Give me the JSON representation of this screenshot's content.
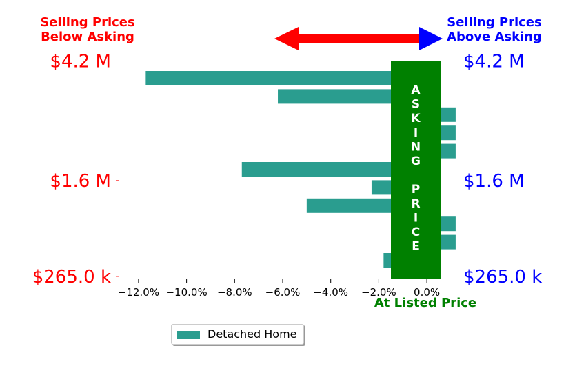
{
  "chart_data": {
    "type": "bar",
    "orientation": "horizontal",
    "header_left": [
      "Selling Prices",
      "Below Asking"
    ],
    "header_right": [
      "Selling Prices",
      "Above Asking"
    ],
    "xlabel": "At Listed Price",
    "center_band_text": "ASKING PRICE",
    "xlim": [
      -12.6,
      0.6
    ],
    "xticks": [
      -12,
      -10,
      -8,
      -6,
      -4,
      -2,
      0
    ],
    "xtick_labels": [
      "−12.0%",
      "−10.0%",
      "−8.0%",
      "−6.0%",
      "−4.0%",
      "−2.0%",
      "0.0%"
    ],
    "ytick_labels": [
      {
        "row": 0,
        "label": "$4.2 M"
      },
      {
        "row": 6,
        "label": "$1.6 M"
      },
      {
        "row": 11,
        "label": "$265.0 k"
      }
    ],
    "series": [
      {
        "name": "Detached Home",
        "color": "#2a9d8f",
        "values": [
          -11.7,
          -6.2,
          1.2,
          1.2,
          1.2,
          -7.7,
          -2.3,
          -5.0,
          1.2,
          1.2,
          -1.8
        ]
      }
    ],
    "colors": {
      "below": "#ff0000",
      "above": "#0000ff",
      "asking_band": "#008000",
      "axis_label": "#008000"
    },
    "legend_position": "below"
  }
}
